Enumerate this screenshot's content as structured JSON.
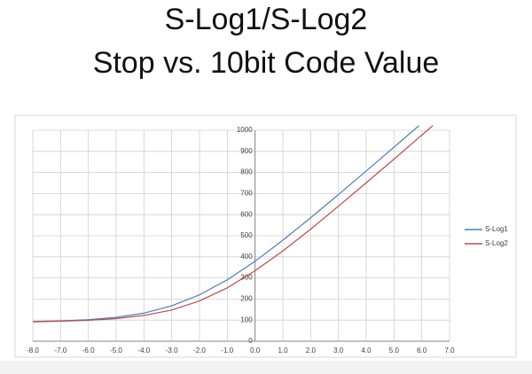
{
  "chart_data": {
    "type": "line",
    "title": "S-Log1/S-Log2",
    "subtitle": "Stop vs. 10bit Code Value",
    "xlim": [
      -8,
      7
    ],
    "ylim": [
      0,
      1000
    ],
    "xticks": [
      {
        "value": -8,
        "label": "-8.0"
      },
      {
        "value": -7,
        "label": "-7.0"
      },
      {
        "value": -6,
        "label": "-6.0"
      },
      {
        "value": -5,
        "label": "-5.0"
      },
      {
        "value": -4,
        "label": "-4.0"
      },
      {
        "value": -3,
        "label": "-3.0"
      },
      {
        "value": -2,
        "label": "-2.0"
      },
      {
        "value": -1,
        "label": "-1.0"
      },
      {
        "value": 0,
        "label": "0.0"
      },
      {
        "value": 1,
        "label": "1.0"
      },
      {
        "value": 2,
        "label": "2.0"
      },
      {
        "value": 3,
        "label": "3.0"
      },
      {
        "value": 4,
        "label": "4.0"
      },
      {
        "value": 5,
        "label": "5.0"
      },
      {
        "value": 6,
        "label": "6.0"
      },
      {
        "value": 7,
        "label": "7.0"
      }
    ],
    "yticks": [
      0,
      100,
      200,
      300,
      400,
      500,
      600,
      700,
      800,
      900,
      1000
    ],
    "grid": true,
    "legend": "right",
    "series": [
      {
        "name": "S-Log1",
        "color": "#4a7ebb",
        "x": [
          -8,
          -7,
          -6,
          -5,
          -4,
          -3,
          -2,
          -1,
          0,
          1,
          2,
          3,
          4,
          5,
          5.9
        ],
        "values": [
          93,
          96,
          102,
          113,
          133,
          168,
          220,
          291,
          379,
          479,
          585,
          695,
          807,
          920,
          1022
        ]
      },
      {
        "name": "S-Log2",
        "color": "#be4b48",
        "x": [
          -8,
          -7,
          -6,
          -5,
          -4,
          -3,
          -2,
          -1,
          0,
          1,
          2,
          3,
          4,
          5,
          6,
          6.4
        ],
        "values": [
          92,
          95,
          99,
          107,
          122,
          148,
          191,
          253,
          334,
          428,
          531,
          640,
          751,
          863,
          977,
          1022
        ]
      }
    ]
  }
}
